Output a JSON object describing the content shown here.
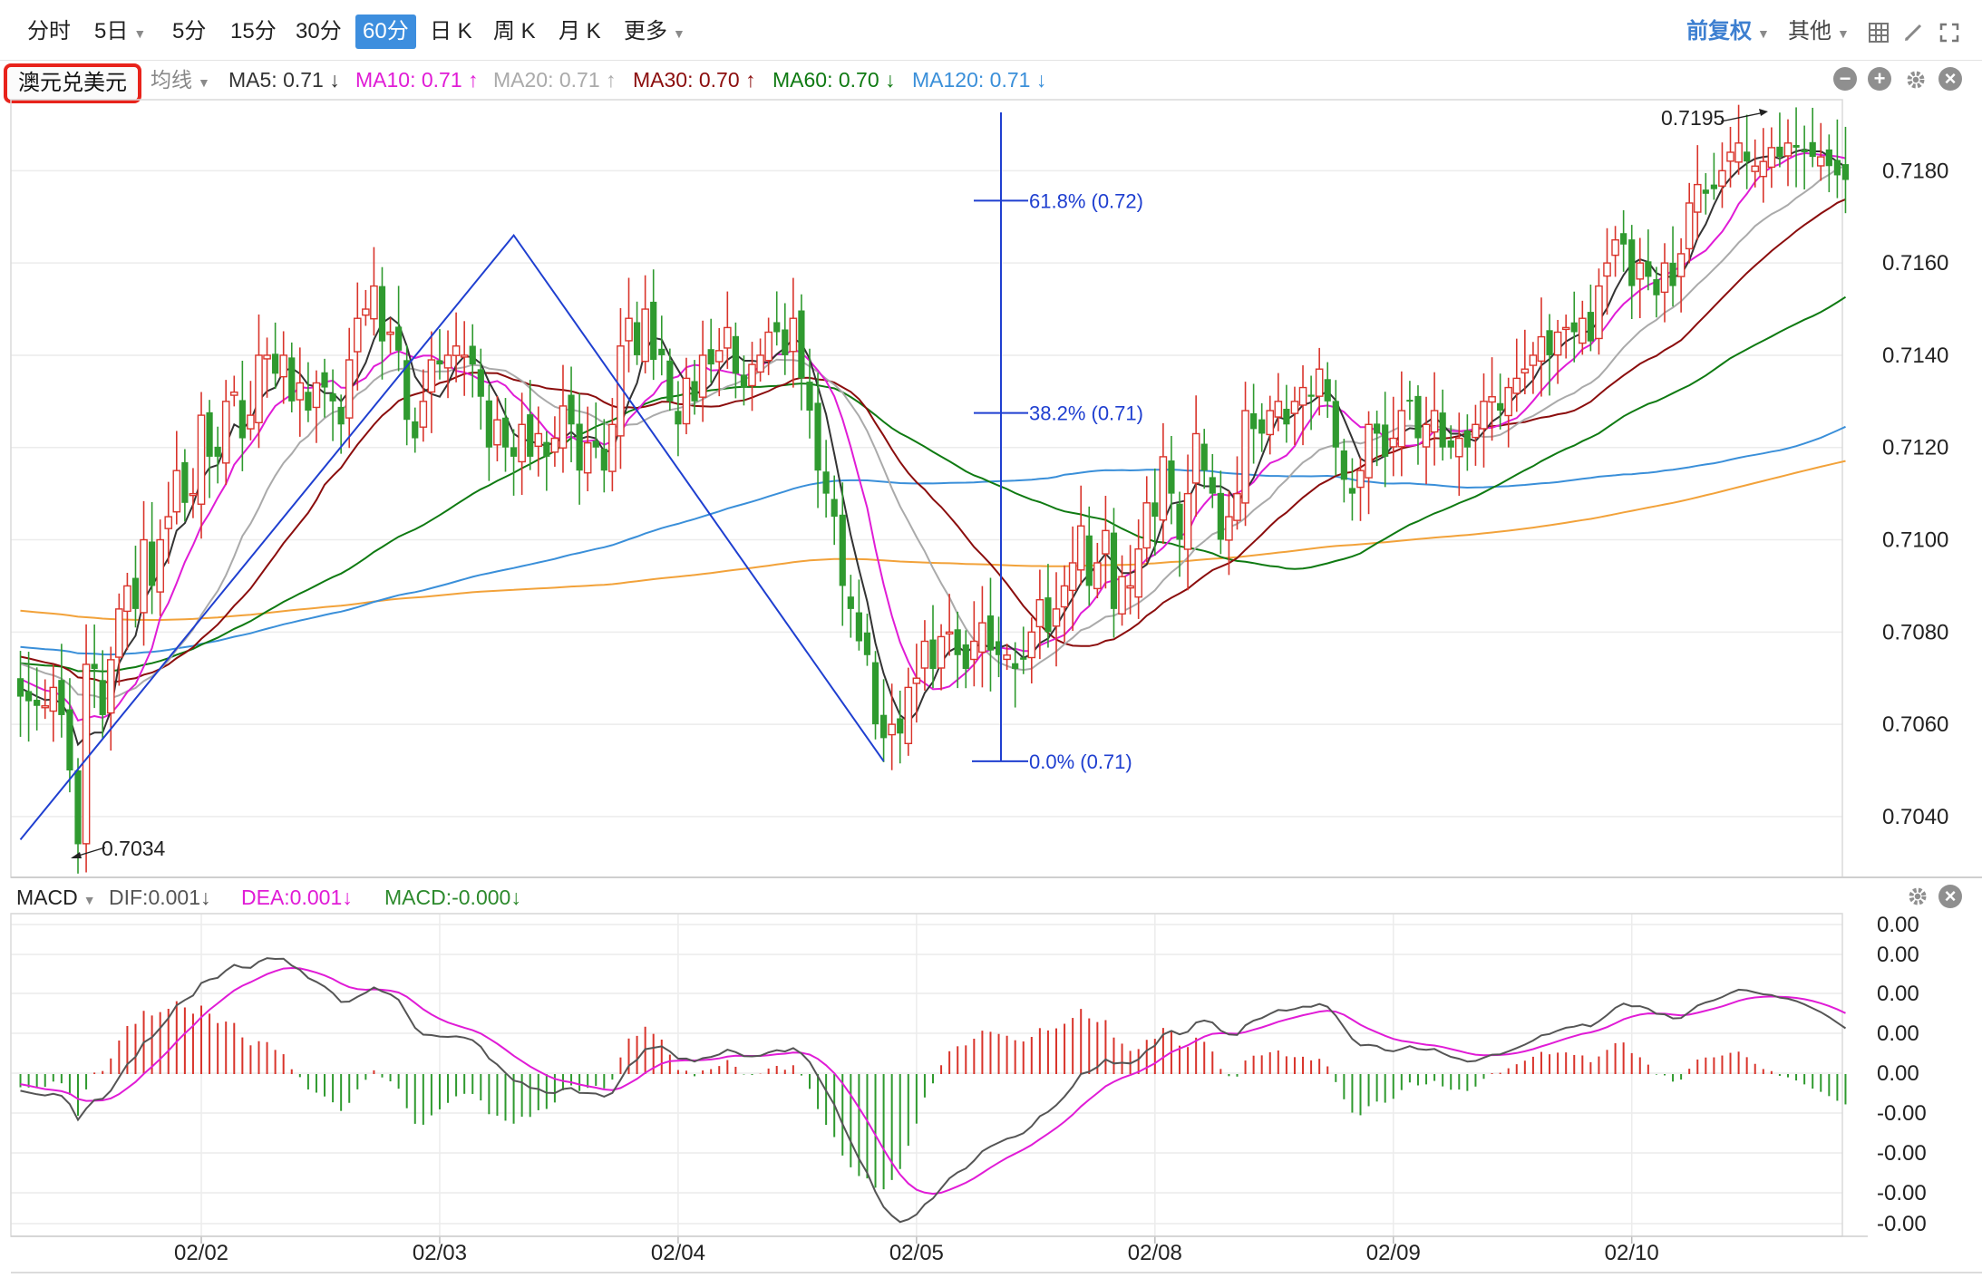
{
  "toolbar": {
    "periods": [
      "分时",
      "5日",
      "5分",
      "15分",
      "30分",
      "60分",
      "日 K",
      "周 K",
      "月 K",
      "更多"
    ],
    "active": "60分",
    "adjust": "前复权",
    "other": "其他"
  },
  "symbol": "澳元兑美元",
  "ma_legend": {
    "type": "均线",
    "items": [
      {
        "label": "MA5: 0.71 ↓",
        "color": "#333333"
      },
      {
        "label": "MA10: 0.71 ↑",
        "color": "#e01cd6"
      },
      {
        "label": "MA20: 0.71 ↑",
        "color": "#aaaaaa"
      },
      {
        "label": "MA30: 0.70 ↑",
        "color": "#8b0d0d"
      },
      {
        "label": "MA60: 0.70 ↓",
        "color": "#0f7a12"
      },
      {
        "label": "MA120: 0.71 ↓",
        "color": "#3a8fd9"
      }
    ]
  },
  "macd_legend": {
    "name": "MACD",
    "items": [
      {
        "label": "DIF:0.001↓",
        "color": "#555555"
      },
      {
        "label": "DEA:0.001↓",
        "color": "#e01cd6"
      },
      {
        "label": "MACD:-0.000↓",
        "color": "#2d8a2d"
      }
    ]
  },
  "colors": {
    "up": "#d9342b",
    "down": "#2f9a2f",
    "fib": "#1f3fd0",
    "ma250": "#f2a23a"
  },
  "chart_data": [
    {
      "type": "candlestick",
      "title": "",
      "dates": [
        "02/02",
        "02/03",
        "02/04",
        "02/05",
        "02/08",
        "02/09",
        "02/10"
      ],
      "yticks": [
        "0.7040",
        "0.7060",
        "0.7080",
        "0.7100",
        "0.7120",
        "0.7140",
        "0.7160",
        "0.7180"
      ],
      "ylim": [
        0.7028,
        0.7195
      ],
      "extremes": {
        "high": "0.7195",
        "low": "0.7034"
      },
      "fibonacci": [
        {
          "label": "61.8% (0.72)",
          "value": 0.71735
        },
        {
          "label": "38.2% (0.71)",
          "value": 0.71275
        },
        {
          "label": "0.0% (0.71)",
          "value": 0.7052
        }
      ],
      "trendline_points": [
        [
          0,
          0.7035
        ],
        [
          60,
          0.7166
        ],
        [
          105,
          0.7052
        ]
      ],
      "close": [
        0.7066,
        0.7065,
        0.7064,
        0.7064,
        0.7068,
        0.7062,
        0.705,
        0.7034,
        0.7073,
        0.7072,
        0.7062,
        0.7074,
        0.7085,
        0.709,
        0.7085,
        0.71,
        0.709,
        0.71,
        0.7105,
        0.7115,
        0.7108,
        0.711,
        0.7127,
        0.7118,
        0.7118,
        0.713,
        0.7132,
        0.7122,
        0.7127,
        0.714,
        0.714,
        0.7136,
        0.714,
        0.713,
        0.7134,
        0.7128,
        0.7134,
        0.7133,
        0.713,
        0.7125,
        0.7139,
        0.7148,
        0.715,
        0.7155,
        0.7143,
        0.7145,
        0.7141,
        0.7126,
        0.7122,
        0.713,
        0.7139,
        0.7138,
        0.714,
        0.7142,
        0.714,
        0.7138,
        0.7131,
        0.712,
        0.7126,
        0.712,
        0.7118,
        0.7125,
        0.7118,
        0.7123,
        0.7118,
        0.7122,
        0.7129,
        0.7125,
        0.7115,
        0.7121,
        0.712,
        0.7115,
        0.7125,
        0.7142,
        0.7148,
        0.714,
        0.715,
        0.7139,
        0.714,
        0.713,
        0.7125,
        0.7135,
        0.713,
        0.714,
        0.7138,
        0.7141,
        0.7146,
        0.7136,
        0.7133,
        0.7138,
        0.714,
        0.7145,
        0.7145,
        0.714,
        0.7148,
        0.7135,
        0.7128,
        0.7115,
        0.711,
        0.7105,
        0.709,
        0.7085,
        0.7078,
        0.7075,
        0.706,
        0.7057,
        0.706,
        0.7058,
        0.7068,
        0.707,
        0.7078,
        0.7072,
        0.7079,
        0.708,
        0.7075,
        0.7072,
        0.7078,
        0.7082,
        0.7076,
        0.7075,
        0.7075,
        0.7072,
        0.7074,
        0.708,
        0.7087,
        0.708,
        0.7085,
        0.709,
        0.7095,
        0.7103,
        0.709,
        0.7095,
        0.7102,
        0.7085,
        0.7092,
        0.709,
        0.7098,
        0.7108,
        0.7105,
        0.7118,
        0.711,
        0.71,
        0.711,
        0.7123,
        0.7115,
        0.711,
        0.71,
        0.7105,
        0.711,
        0.7128,
        0.7124,
        0.7123,
        0.7128,
        0.713,
        0.7125,
        0.713,
        0.7133,
        0.7131,
        0.7137,
        0.713,
        0.712,
        0.7113,
        0.711,
        0.7115,
        0.7125,
        0.7123,
        0.7118,
        0.7122,
        0.7128,
        0.713,
        0.7122,
        0.7125,
        0.7128,
        0.712,
        0.712,
        0.7122,
        0.712,
        0.7125,
        0.713,
        0.7131,
        0.7128,
        0.7133,
        0.7135,
        0.7137,
        0.714,
        0.7144,
        0.714,
        0.7145,
        0.7146,
        0.7145,
        0.7148,
        0.7143,
        0.7155,
        0.716,
        0.7165,
        0.7164,
        0.7155,
        0.716,
        0.7157,
        0.7153,
        0.716,
        0.7155,
        0.7162,
        0.7173,
        0.7177,
        0.7175,
        0.7176,
        0.718,
        0.7184,
        0.7186,
        0.7182,
        0.7181,
        0.7182,
        0.7185,
        0.7183,
        0.7186,
        0.7185,
        0.7184,
        0.7183,
        0.7183,
        0.7181,
        0.7179,
        0.7178
      ]
    },
    {
      "type": "macd",
      "title": "",
      "yticks": [
        "0.00",
        "0.00",
        "0.00",
        "0.00",
        "0.00",
        "-0.00",
        "-0.00",
        "-0.00",
        "-0.00"
      ]
    }
  ]
}
